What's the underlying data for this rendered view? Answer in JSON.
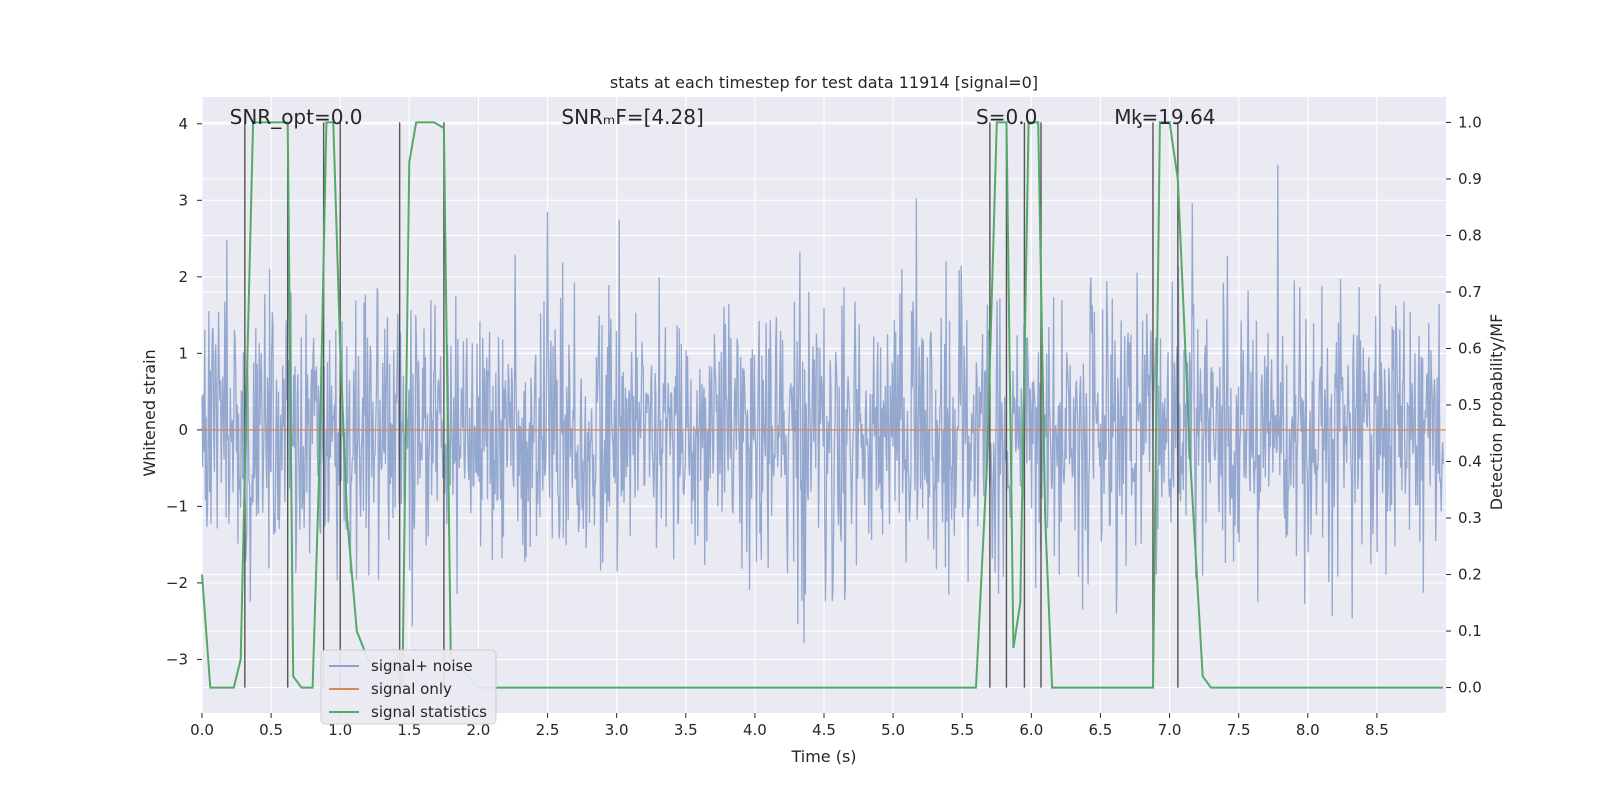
{
  "chart_data": {
    "type": "line",
    "title": "stats at each timestep for test data 11914 [signal=0]",
    "xlabel": "Time (s)",
    "ylabel": "Whitened strain",
    "ylabel_right": "Detection probability/MF",
    "xlim": [
      0.0,
      9.0
    ],
    "ylim_left": [
      -3.7,
      4.35
    ],
    "ylim_right": [
      -0.045,
      1.045
    ],
    "xticks": [
      0.0,
      0.5,
      1.0,
      1.5,
      2.0,
      2.5,
      3.0,
      3.5,
      4.0,
      4.5,
      5.0,
      5.5,
      6.0,
      6.5,
      7.0,
      7.5,
      8.0,
      8.5
    ],
    "xtick_labels": [
      "0.0",
      "0.5",
      "1.0",
      "1.5",
      "2.0",
      "2.5",
      "3.0",
      "3.5",
      "4.0",
      "4.5",
      "5.0",
      "5.5",
      "6.0",
      "6.5",
      "7.0",
      "7.5",
      "8.0",
      "8.5"
    ],
    "yticks_left": [
      -3,
      -2,
      -1,
      0,
      1,
      2,
      3,
      4
    ],
    "ytick_labels_left": [
      "−3",
      "−2",
      "−1",
      "0",
      "1",
      "2",
      "3",
      "4"
    ],
    "yticks_right": [
      0.0,
      0.1,
      0.2,
      0.3,
      0.4,
      0.5,
      0.6,
      0.7,
      0.8,
      0.9,
      1.0
    ],
    "ytick_labels_right": [
      "0.0",
      "0.1",
      "0.2",
      "0.3",
      "0.4",
      "0.5",
      "0.6",
      "0.7",
      "0.8",
      "0.9",
      "1.0"
    ],
    "annotations": [
      {
        "name": "snr-opt",
        "text": "SNR_opt=0.0",
        "x": 0.2
      },
      {
        "name": "snr-mf",
        "text": "SNRₘF=[4.28]",
        "x": 2.6
      },
      {
        "name": "s-value",
        "text": "S=0.0",
        "x": 5.6
      },
      {
        "name": "mc-value",
        "text": "Mᶄ=19.64",
        "x": 6.6
      }
    ],
    "series": [
      {
        "name": "signal+ noise",
        "color": "#8fa3cc",
        "description": "whitened noisy strain, approx. gaussian with std ~0.9 over 0-9 s",
        "std": 0.9
      },
      {
        "name": "signal only",
        "color": "#dd8452",
        "y_constant": 0.0
      },
      {
        "name": "signal statistics",
        "color": "#55a868",
        "axis": "right",
        "x": [
          0.0,
          0.06,
          0.23,
          0.28,
          0.33,
          0.37,
          0.42,
          0.55,
          0.62,
          0.66,
          0.72,
          0.8,
          0.85,
          0.9,
          0.95,
          1.0,
          1.05,
          1.12,
          1.2,
          1.3,
          1.4,
          1.45,
          1.5,
          1.55,
          1.68,
          1.75,
          1.8,
          2.0,
          5.6,
          5.68,
          5.75,
          5.82,
          5.87,
          5.92,
          5.98,
          6.05,
          6.1,
          6.15,
          6.3,
          6.88,
          6.93,
          7.0,
          7.06,
          7.15,
          7.24,
          7.3,
          7.4,
          8.98
        ],
        "y": [
          0.2,
          0.0,
          0.0,
          0.05,
          0.6,
          1.0,
          1.0,
          1.0,
          1.0,
          0.02,
          0.0,
          0.0,
          0.4,
          1.0,
          1.0,
          0.6,
          0.3,
          0.1,
          0.05,
          0.03,
          0.05,
          0.0,
          0.93,
          1.0,
          1.0,
          0.99,
          0.05,
          0.0,
          0.0,
          0.4,
          1.0,
          1.0,
          0.07,
          0.15,
          1.0,
          1.0,
          0.3,
          0.0,
          0.0,
          0.0,
          1.0,
          1.0,
          0.9,
          0.4,
          0.02,
          0.0,
          0.0,
          0.0
        ]
      }
    ],
    "vertical_lines": {
      "color": "#555555",
      "x": [
        0.31,
        0.62,
        0.88,
        1.0,
        1.43,
        1.75,
        5.7,
        5.82,
        5.95,
        6.07,
        6.88,
        7.06
      ]
    },
    "legend": {
      "position": "lower-left",
      "entries": [
        {
          "label": "signal+ noise",
          "color": "#8fa3cc"
        },
        {
          "label": "signal only",
          "color": "#dd8452"
        },
        {
          "label": "signal statistics",
          "color": "#55a868"
        }
      ]
    },
    "grid": true,
    "background": "#eaeaf2"
  }
}
